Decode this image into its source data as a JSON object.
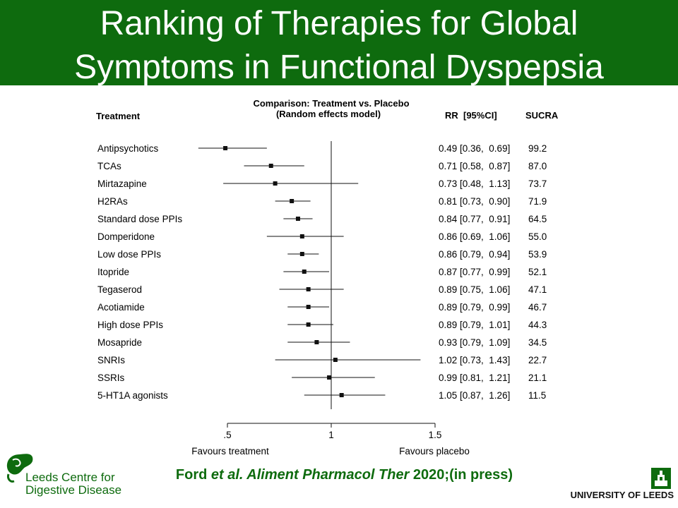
{
  "header": {
    "title_line_1": "Ranking of Therapies for Global",
    "title_line_2": "Symptoms in Functional Dyspepsia",
    "background": "#0e6b0e"
  },
  "chart_data": {
    "type": "forest",
    "model_title_1": "Comparison: Treatment vs. Placebo",
    "model_title_2": "(Random effects model)",
    "col_treatment": "Treatment",
    "col_rr": "RR  [95%CI]",
    "col_sucra": "SUCRA",
    "xticks": [
      ".5",
      "1",
      "1.5"
    ],
    "xlim": [
      0.5,
      1.5
    ],
    "ref_line": 1,
    "favours_left": "Favours treatment",
    "favours_right": "Favours placebo",
    "rows": [
      {
        "name": "Antipsychotics",
        "rr": 0.49,
        "lo": 0.36,
        "hi": 0.69,
        "text": "0.49 [0.36,  0.69]",
        "sucra": "99.2"
      },
      {
        "name": "TCAs",
        "rr": 0.71,
        "lo": 0.58,
        "hi": 0.87,
        "text": "0.71 [0.58,  0.87]",
        "sucra": "87.0"
      },
      {
        "name": "Mirtazapine",
        "rr": 0.73,
        "lo": 0.48,
        "hi": 1.13,
        "text": "0.73 [0.48,  1.13]",
        "sucra": "73.7"
      },
      {
        "name": "H2RAs",
        "rr": 0.81,
        "lo": 0.73,
        "hi": 0.9,
        "text": "0.81 [0.73,  0.90]",
        "sucra": "71.9"
      },
      {
        "name": "Standard dose PPIs",
        "rr": 0.84,
        "lo": 0.77,
        "hi": 0.91,
        "text": "0.84 [0.77,  0.91]",
        "sucra": "64.5"
      },
      {
        "name": "Domperidone",
        "rr": 0.86,
        "lo": 0.69,
        "hi": 1.06,
        "text": "0.86 [0.69,  1.06]",
        "sucra": "55.0"
      },
      {
        "name": "Low dose PPIs",
        "rr": 0.86,
        "lo": 0.79,
        "hi": 0.94,
        "text": "0.86 [0.79,  0.94]",
        "sucra": "53.9"
      },
      {
        "name": "Itopride",
        "rr": 0.87,
        "lo": 0.77,
        "hi": 0.99,
        "text": "0.87 [0.77,  0.99]",
        "sucra": "52.1"
      },
      {
        "name": "Tegaserod",
        "rr": 0.89,
        "lo": 0.75,
        "hi": 1.06,
        "text": "0.89 [0.75,  1.06]",
        "sucra": "47.1"
      },
      {
        "name": "Acotiamide",
        "rr": 0.89,
        "lo": 0.79,
        "hi": 0.99,
        "text": "0.89 [0.79,  0.99]",
        "sucra": "46.7"
      },
      {
        "name": "High dose PPIs",
        "rr": 0.89,
        "lo": 0.79,
        "hi": 1.01,
        "text": "0.89 [0.79,  1.01]",
        "sucra": "44.3"
      },
      {
        "name": "Mosapride",
        "rr": 0.93,
        "lo": 0.79,
        "hi": 1.09,
        "text": "0.93 [0.79,  1.09]",
        "sucra": "34.5"
      },
      {
        "name": "SNRIs",
        "rr": 1.02,
        "lo": 0.73,
        "hi": 1.43,
        "text": "1.02 [0.73,  1.43]",
        "sucra": "22.7"
      },
      {
        "name": "SSRIs",
        "rr": 0.99,
        "lo": 0.81,
        "hi": 1.21,
        "text": "0.99 [0.81,  1.21]",
        "sucra": "21.1"
      },
      {
        "name": "5-HT1A agonists",
        "rr": 1.05,
        "lo": 0.87,
        "hi": 1.26,
        "text": "1.05 [0.87,  1.26]",
        "sucra": "11.5"
      }
    ]
  },
  "citation": {
    "author": "Ford ",
    "et_al": "et al.",
    "journal": " Aliment Pharmacol Ther",
    "rest": " 2020;(in press)",
    "color": "#0e6b0e"
  },
  "logos": {
    "leeds_centre_line_1": "Leeds Centre for",
    "leeds_centre_line_2": "Digestive Disease",
    "university": "UNIVERSITY OF LEEDS"
  }
}
